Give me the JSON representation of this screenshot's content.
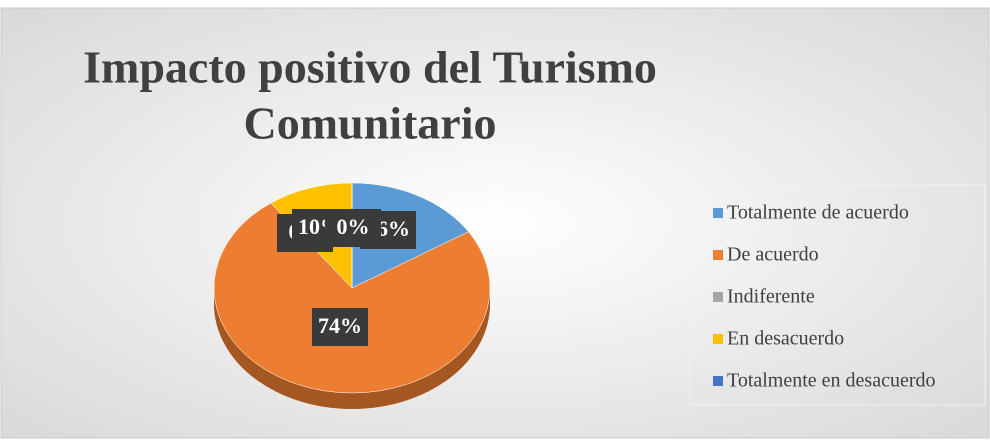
{
  "chart_data": {
    "type": "pie",
    "title": "Impacto positivo del Turismo Comunitario",
    "title_lines": [
      "Impacto positivo del Turismo",
      "Comunitario"
    ],
    "categories": [
      "Totalmente de acuerdo",
      "De acuerdo",
      "Indiferente",
      "En desacuerdo",
      "Totalmente en desacuerdo"
    ],
    "values": [
      16,
      74,
      0,
      10,
      0
    ],
    "value_labels": [
      "16%",
      "74%",
      "0%",
      "10%",
      "0%"
    ],
    "colors": [
      "#5b9bd5",
      "#ed7d31",
      "#a5a5a5",
      "#ffc000",
      "#4472c4"
    ],
    "legend": "right"
  }
}
